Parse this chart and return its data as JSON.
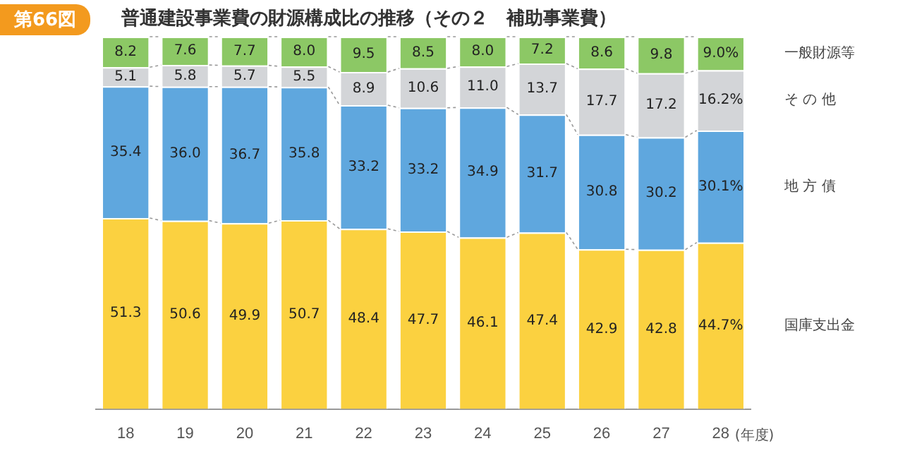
{
  "chart_data": {
    "type": "bar",
    "stacked": true,
    "title": "普通建設事業費の財源構成比の推移（その２　補助事業費）",
    "xlabel": "(年度)",
    "annotations": [
      "第66図"
    ],
    "categories": [
      "18",
      "19",
      "20",
      "21",
      "22",
      "23",
      "24",
      "25",
      "26",
      "27",
      "28"
    ],
    "ylim": [
      0,
      100
    ],
    "legend": false,
    "grid": false,
    "tick_labels": "x",
    "series": [
      {
        "name": "国庫支出金",
        "color": "#fbd140",
        "values": [
          51.3,
          50.6,
          49.9,
          50.7,
          48.4,
          47.7,
          46.1,
          47.4,
          42.9,
          42.8,
          44.7
        ],
        "value_labels": [
          "51.3",
          "50.6",
          "49.9",
          "50.7",
          "48.4",
          "47.7",
          "46.1",
          "47.4",
          "42.9",
          "42.8",
          "44.7%"
        ]
      },
      {
        "name": "地 方 債",
        "color": "#5fa7de",
        "values": [
          35.4,
          36.0,
          36.7,
          35.8,
          33.2,
          33.2,
          34.9,
          31.7,
          30.8,
          30.2,
          30.1
        ],
        "value_labels": [
          "35.4",
          "36.0",
          "36.7",
          "35.8",
          "33.2",
          "33.2",
          "34.9",
          "31.7",
          "30.8",
          "30.2",
          "30.1%"
        ]
      },
      {
        "name": "そ の 他",
        "color": "#d3d5d8",
        "values": [
          5.1,
          5.8,
          5.7,
          5.5,
          8.9,
          10.6,
          11.0,
          13.7,
          17.7,
          17.2,
          16.2
        ],
        "value_labels": [
          "5.1",
          "5.8",
          "5.7",
          "5.5",
          "8.9",
          "10.6",
          "11.0",
          "13.7",
          "17.7",
          "17.2",
          "16.2%"
        ]
      },
      {
        "name": "一般財源等",
        "color": "#8cc865",
        "values": [
          8.2,
          7.6,
          7.7,
          8.0,
          9.5,
          8.5,
          8.0,
          7.2,
          8.6,
          9.8,
          9.0
        ],
        "value_labels": [
          "8.2",
          "7.6",
          "7.7",
          "8.0",
          "9.5",
          "8.5",
          "8.0",
          "7.2",
          "8.6",
          "9.8",
          "9.0%"
        ]
      }
    ]
  }
}
